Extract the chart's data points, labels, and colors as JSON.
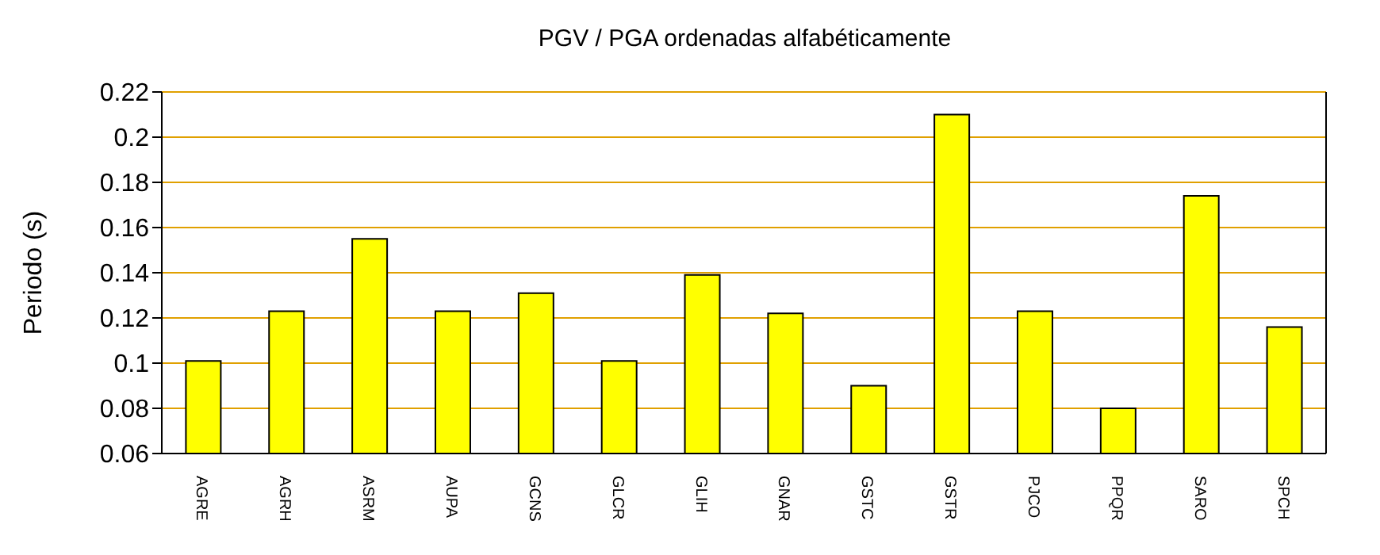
{
  "chart_data": {
    "type": "bar",
    "title": "PGV / PGA ordenadas alfabéticamente",
    "ylabel": "Periodo (s)",
    "categories": [
      "AGRE",
      "AGRH",
      "ASRM",
      "AUPA",
      "GCNS",
      "GLCR",
      "GLIH",
      "GNAR",
      "GSTC",
      "GSTR",
      "PJCO",
      "PPQR",
      "SARO",
      "SPCH"
    ],
    "values": [
      0.101,
      0.123,
      0.155,
      0.123,
      0.131,
      0.101,
      0.139,
      0.122,
      0.09,
      0.21,
      0.123,
      0.08,
      0.174,
      0.116
    ],
    "color": "#ffff00",
    "ylim": [
      0.06,
      0.22
    ],
    "yticks": [
      0.06,
      0.08,
      0.1,
      0.12,
      0.14,
      0.16,
      0.18,
      0.2,
      0.22
    ],
    "grid": "y",
    "legend": false
  }
}
